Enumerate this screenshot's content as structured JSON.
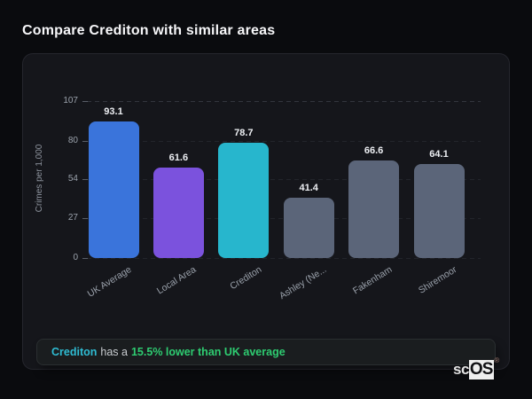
{
  "header": {
    "title": "Compare Crediton with similar areas"
  },
  "chart_data": {
    "type": "bar",
    "title": "Compare Crediton with similar areas",
    "categories": [
      "UK Average",
      "Local Area",
      "Crediton",
      "Ashley (Ne...",
      "Fakenham",
      "Shiremoor"
    ],
    "values": [
      93.1,
      61.6,
      78.7,
      41.4,
      66.6,
      64.1
    ],
    "value_labels": [
      "93.1",
      "61.6",
      "78.7",
      "41.4",
      "66.6",
      "64.1"
    ],
    "bar_colors": [
      "#3a74db",
      "#7b52dd",
      "#27b6cd",
      "#5b6579",
      "#5b6579",
      "#5b6579"
    ],
    "xlabel": "",
    "ylabel": "Crimes per 1,000",
    "yticks": [
      0,
      27,
      54,
      80,
      107
    ],
    "ylim": [
      0,
      107
    ],
    "grid": "horizontal-dashed",
    "legend_position": "none"
  },
  "note": {
    "area_label": "Crediton",
    "connector_text": "has a",
    "stat_text": "15.5% lower than UK average"
  },
  "logo": {
    "prefix": "sc",
    "suffix": "OS",
    "mark": "®"
  },
  "colors": {
    "page_bg": "#0a0b0e",
    "card_bg": "#15161b",
    "card_border": "#25262d",
    "accent_blue": "#3a74db",
    "accent_purple": "#7b52dd",
    "accent_teal": "#27b6cd",
    "neutral_bar": "#5b6579",
    "axis_text": "#9aa1ab",
    "value_text": "#eceef2",
    "note_area_text": "#2fbcd3",
    "note_stat_text": "#2ecc71"
  }
}
